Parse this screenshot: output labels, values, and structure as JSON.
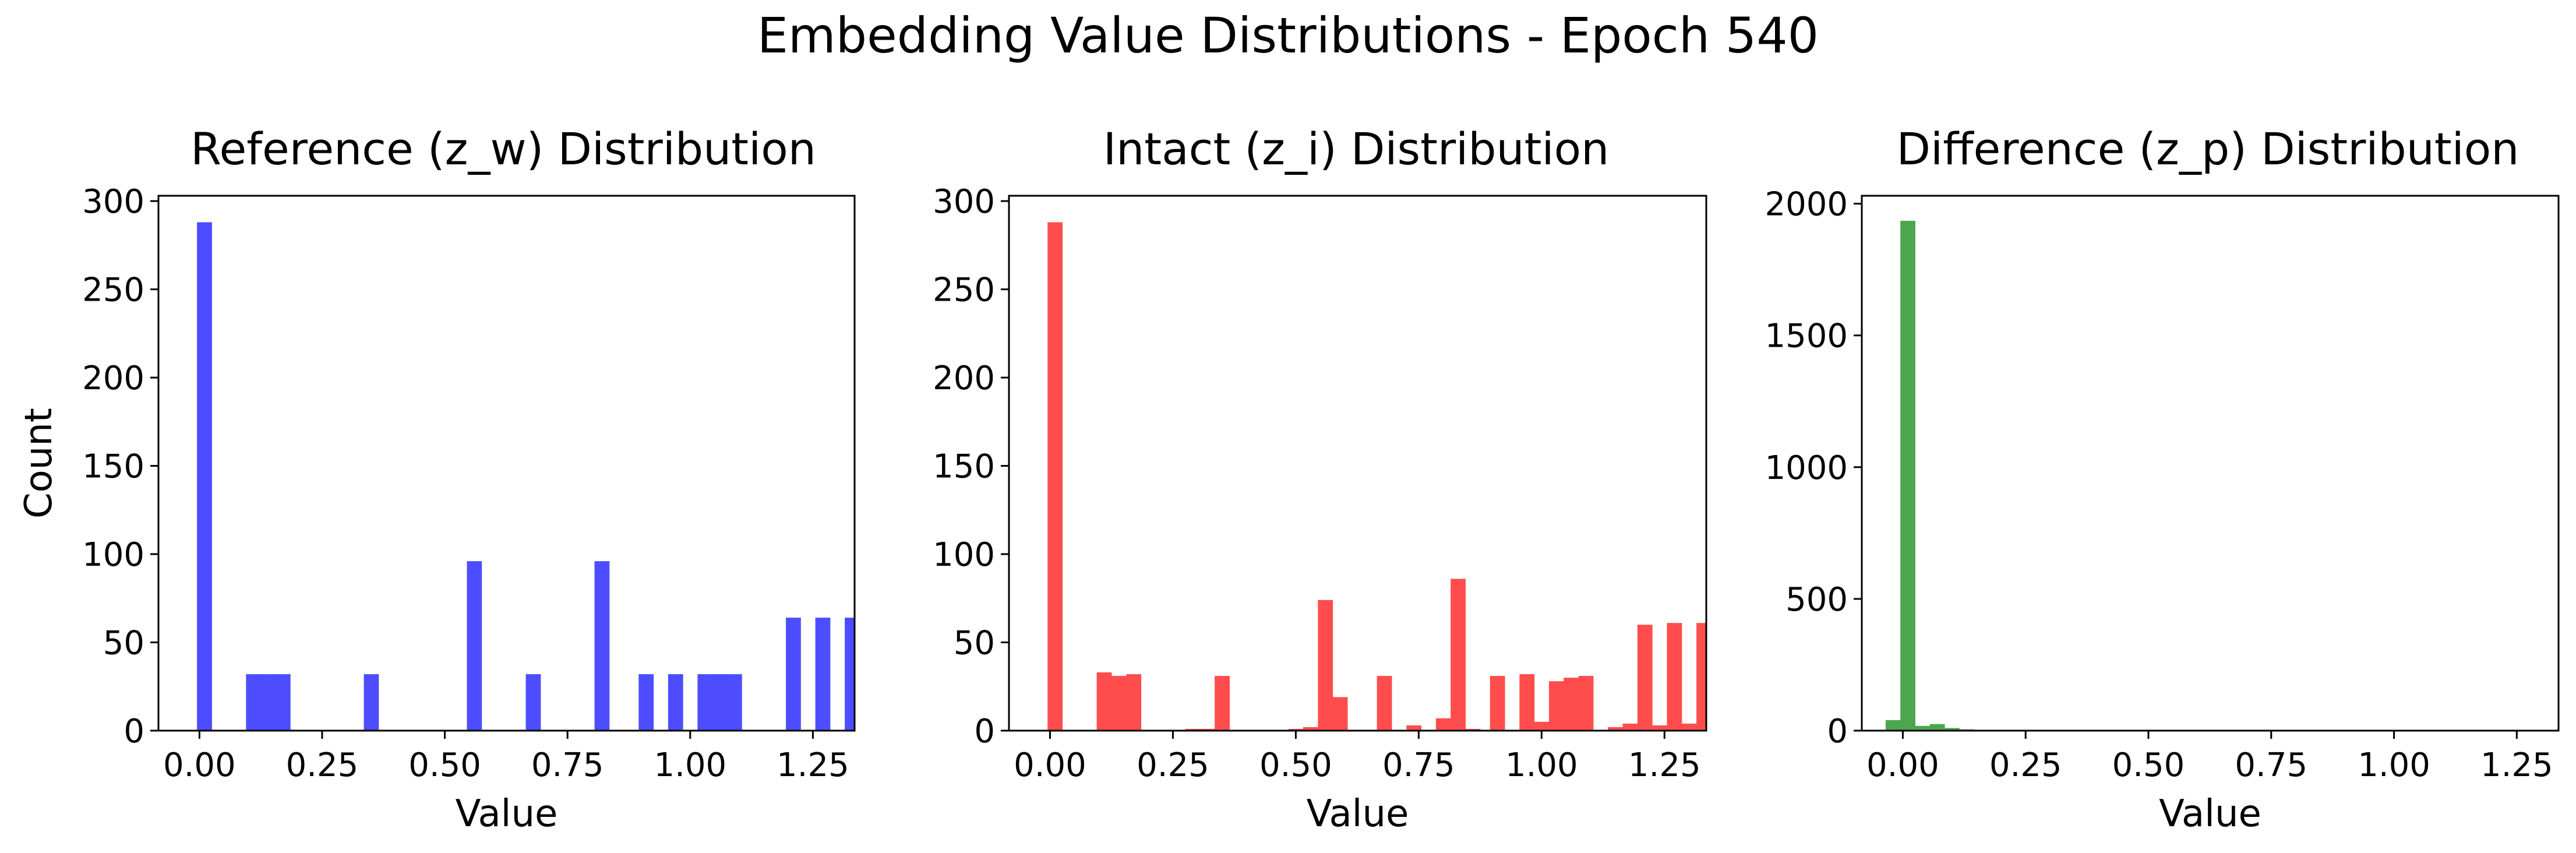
{
  "suptitle": "Embedding Value Distributions - Epoch 540",
  "chart_data": [
    {
      "type": "bar",
      "title": "Reference (z_w) Distribution",
      "xlabel": "Value",
      "ylabel": "Count",
      "xlim": [
        -0.0835,
        1.335
      ],
      "ylim": [
        0,
        303
      ],
      "xticks": [
        0.0,
        0.25,
        0.5,
        0.75,
        1.0,
        1.25
      ],
      "xtick_labels": [
        "0.00",
        "0.25",
        "0.50",
        "0.75",
        "1.00",
        "1.25"
      ],
      "yticks": [
        0,
        50,
        100,
        150,
        200,
        250,
        300
      ],
      "ytick_labels": [
        "0",
        "50",
        "100",
        "150",
        "200",
        "250",
        "300"
      ],
      "color": "#4d4dff",
      "bin_width": 0.03,
      "bins": [
        {
          "x": -0.005,
          "count": 288
        },
        {
          "x": 0.095,
          "count": 32
        },
        {
          "x": 0.125,
          "count": 32
        },
        {
          "x": 0.155,
          "count": 32
        },
        {
          "x": 0.335,
          "count": 32
        },
        {
          "x": 0.545,
          "count": 96
        },
        {
          "x": 0.665,
          "count": 32
        },
        {
          "x": 0.805,
          "count": 96
        },
        {
          "x": 0.895,
          "count": 32
        },
        {
          "x": 0.955,
          "count": 32
        },
        {
          "x": 1.015,
          "count": 32
        },
        {
          "x": 1.045,
          "count": 32
        },
        {
          "x": 1.075,
          "count": 32
        },
        {
          "x": 1.195,
          "count": 64
        },
        {
          "x": 1.255,
          "count": 64
        },
        {
          "x": 1.315,
          "count": 64
        },
        {
          "x": 1.345,
          "count": 32
        }
      ]
    },
    {
      "type": "bar",
      "title": "Intact (z_i) Distribution",
      "xlabel": "Value",
      "ylabel": "",
      "xlim": [
        -0.0835,
        1.335
      ],
      "ylim": [
        0,
        303
      ],
      "xticks": [
        0.0,
        0.25,
        0.5,
        0.75,
        1.0,
        1.25
      ],
      "xtick_labels": [
        "0.00",
        "0.25",
        "0.50",
        "0.75",
        "1.00",
        "1.25"
      ],
      "yticks": [
        0,
        50,
        100,
        150,
        200,
        250,
        300
      ],
      "ytick_labels": [
        "0",
        "50",
        "100",
        "150",
        "200",
        "250",
        "300"
      ],
      "color": "#ff4d4d",
      "bin_width": 0.03,
      "bins": [
        {
          "x": -0.005,
          "count": 288
        },
        {
          "x": 0.095,
          "count": 33
        },
        {
          "x": 0.125,
          "count": 31
        },
        {
          "x": 0.155,
          "count": 32
        },
        {
          "x": 0.275,
          "count": 1
        },
        {
          "x": 0.305,
          "count": 1
        },
        {
          "x": 0.335,
          "count": 31
        },
        {
          "x": 0.485,
          "count": 1
        },
        {
          "x": 0.515,
          "count": 2
        },
        {
          "x": 0.545,
          "count": 74
        },
        {
          "x": 0.575,
          "count": 19
        },
        {
          "x": 0.665,
          "count": 31
        },
        {
          "x": 0.725,
          "count": 3
        },
        {
          "x": 0.785,
          "count": 7
        },
        {
          "x": 0.815,
          "count": 86
        },
        {
          "x": 0.845,
          "count": 1
        },
        {
          "x": 0.895,
          "count": 31
        },
        {
          "x": 0.955,
          "count": 32
        },
        {
          "x": 0.985,
          "count": 5
        },
        {
          "x": 1.015,
          "count": 28
        },
        {
          "x": 1.045,
          "count": 30
        },
        {
          "x": 1.075,
          "count": 31
        },
        {
          "x": 1.135,
          "count": 2
        },
        {
          "x": 1.165,
          "count": 4
        },
        {
          "x": 1.195,
          "count": 60
        },
        {
          "x": 1.225,
          "count": 3
        },
        {
          "x": 1.255,
          "count": 61
        },
        {
          "x": 1.285,
          "count": 4
        },
        {
          "x": 1.315,
          "count": 61
        },
        {
          "x": 1.345,
          "count": 31
        }
      ]
    },
    {
      "type": "bar",
      "title": "Difference (z_p) Distribution",
      "xlabel": "Value",
      "ylabel": "",
      "xlim": [
        -0.0835,
        1.335
      ],
      "ylim": [
        0,
        2030
      ],
      "xticks": [
        0.0,
        0.25,
        0.5,
        0.75,
        1.0,
        1.25
      ],
      "xtick_labels": [
        "0.00",
        "0.25",
        "0.50",
        "0.75",
        "1.00",
        "1.25"
      ],
      "yticks": [
        0,
        500,
        1000,
        1500,
        2000
      ],
      "ytick_labels": [
        "0",
        "500",
        "1000",
        "1500",
        "2000"
      ],
      "color": "#4da64d",
      "bin_width": 0.03,
      "bins": [
        {
          "x": -0.035,
          "count": 40
        },
        {
          "x": -0.005,
          "count": 1935
        },
        {
          "x": 0.025,
          "count": 18
        },
        {
          "x": 0.055,
          "count": 25
        },
        {
          "x": 0.085,
          "count": 10
        },
        {
          "x": 0.115,
          "count": 5
        }
      ]
    }
  ]
}
